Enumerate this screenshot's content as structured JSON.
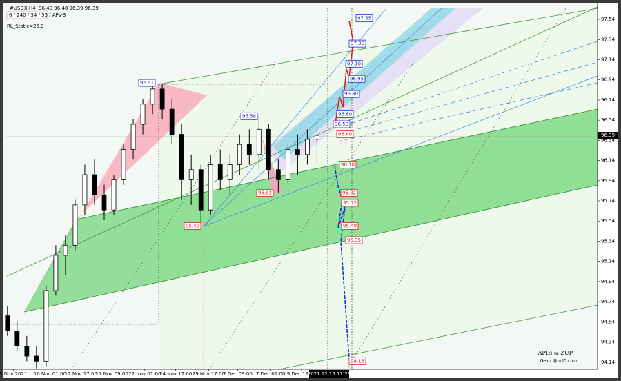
{
  "header": {
    "symbol": "#USDX,H4",
    "ohlc": "96.40 96.48 96.39 96.39",
    "settings": "6 / 240 / 34 / 55 / APs-3",
    "indicator": "RL_Static=25.9"
  },
  "chart_data": {
    "type": "candlestick",
    "x": [
      1,
      6,
      11,
      16,
      21,
      26,
      31,
      36,
      41,
      46,
      51,
      56,
      61,
      66,
      71,
      76,
      81,
      86,
      91,
      96,
      101,
      106,
      111,
      116,
      121,
      126,
      131,
      136,
      141,
      146,
      151,
      156,
      161
    ],
    "open": [
      94.6,
      94.45,
      94.3,
      94.2,
      94.15,
      94.85,
      95.2,
      95.3,
      95.7,
      96.0,
      95.8,
      95.65,
      95.95,
      96.25,
      96.5,
      96.7,
      96.85,
      96.65,
      96.4,
      95.95,
      96.05,
      95.65,
      96.1,
      95.95,
      96.1,
      96.3,
      96.2,
      96.45,
      96.05,
      95.95,
      96.25,
      96.2,
      96.35
    ],
    "high": [
      94.7,
      94.55,
      94.4,
      94.3,
      94.9,
      95.3,
      95.4,
      95.75,
      96.1,
      96.15,
      95.9,
      96.0,
      96.3,
      96.55,
      96.75,
      96.91,
      96.9,
      96.75,
      96.5,
      96.2,
      96.1,
      96.2,
      96.25,
      96.2,
      96.4,
      96.45,
      96.58,
      96.5,
      96.15,
      96.3,
      96.4,
      96.45,
      96.55
    ],
    "low": [
      94.4,
      94.25,
      94.15,
      94.08,
      94.1,
      94.8,
      95.0,
      95.25,
      95.6,
      95.7,
      95.55,
      95.6,
      95.9,
      96.15,
      96.4,
      96.6,
      96.55,
      96.3,
      95.75,
      95.7,
      95.49,
      95.6,
      95.85,
      95.8,
      96.0,
      96.1,
      96.05,
      95.95,
      95.82,
      95.9,
      96.0,
      96.1,
      96.1
    ],
    "close": [
      94.45,
      94.3,
      94.2,
      94.15,
      94.85,
      95.2,
      95.3,
      95.7,
      96.0,
      95.8,
      95.65,
      95.95,
      96.25,
      96.5,
      96.7,
      96.85,
      96.65,
      96.4,
      95.95,
      96.05,
      95.65,
      96.1,
      95.95,
      96.1,
      96.3,
      96.2,
      96.45,
      96.05,
      95.95,
      96.25,
      96.2,
      96.35,
      96.39
    ],
    "up_color": "#ffffff",
    "down_color": "#000000",
    "wick_color": "#000000",
    "xlim": [
      0,
      306
    ],
    "xticks": [
      {
        "value": 4,
        "label": "5 Nov 2021"
      },
      {
        "value": 23,
        "label": "10 Nov 01:00"
      },
      {
        "value": 39,
        "label": "12 Nov 17:00"
      },
      {
        "value": 55,
        "label": "17 Nov 09:00"
      },
      {
        "value": 72,
        "label": "22 Nov 01:00"
      },
      {
        "value": 88,
        "label": "24 Nov 17:00"
      },
      {
        "value": 105,
        "label": "29 Nov 17:00"
      },
      {
        "value": 120,
        "label": "2 Dec 09:00"
      },
      {
        "value": 137,
        "label": "7 Dec 01:00"
      },
      {
        "value": 153,
        "label": "9 Dec 17:00"
      }
    ],
    "ylim": [
      94.07,
      97.65
    ],
    "yticks": [
      97.54,
      97.34,
      97.14,
      96.94,
      96.74,
      96.54,
      96.34,
      96.14,
      95.94,
      95.74,
      95.54,
      95.34,
      95.14,
      94.94,
      94.74,
      94.54,
      94.34,
      94.14
    ],
    "current_price": 96.39,
    "cursor_time": "2021.12.15 11:29",
    "price_tags": [
      {
        "value": 97.55,
        "label": "97.55",
        "color": "#1a2fd0"
      },
      {
        "value": 97.3,
        "label": "97.30",
        "color": "#1a2fd0"
      },
      {
        "value": 97.1,
        "label": "97.10",
        "color": "#1a2fd0"
      },
      {
        "value": 96.95,
        "label": "96.95",
        "color": "#1a2fd0"
      },
      {
        "value": 96.8,
        "label": "96.80",
        "color": "#1a2fd0"
      },
      {
        "value": 96.6,
        "label": "96.60",
        "color": "#1a2fd0"
      },
      {
        "value": 96.5,
        "label": "96.50",
        "color": "#1a2fd0"
      },
      {
        "value": 96.4,
        "label": "96.40",
        "color": "#e02020"
      },
      {
        "value": 96.1,
        "label": "96.10",
        "color": "#e02020"
      },
      {
        "value": 95.82,
        "label": "95.82",
        "color": "#e02020"
      },
      {
        "value": 95.72,
        "label": "95.72",
        "color": "#e02020"
      },
      {
        "value": 95.49,
        "label": "95.49",
        "color": "#e02020"
      },
      {
        "value": 95.35,
        "label": "95.35",
        "color": "#e02020"
      },
      {
        "value": 94.15,
        "label": "94.15",
        "color": "#e02020"
      },
      {
        "value": 96.91,
        "label": "96.91",
        "color": "#1a2fd0"
      },
      {
        "value": 96.58,
        "label": "96.58",
        "color": "#1a2fd0"
      },
      {
        "value": 95.82,
        "label": "95.82",
        "color": "#e02020"
      },
      {
        "value": 95.49,
        "label": "95.49",
        "color": "#e02020"
      }
    ],
    "watermark": [
      "APLs & ZUP",
      "Geloz @ mt5.com"
    ]
  }
}
